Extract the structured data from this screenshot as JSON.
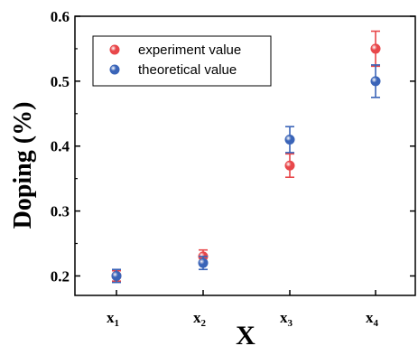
{
  "chart_data": {
    "type": "scatter",
    "xlabel": "X",
    "ylabel": "Doping (%)",
    "categories": [
      {
        "base": "x",
        "sub": "1"
      },
      {
        "base": "x",
        "sub": "2"
      },
      {
        "base": "x",
        "sub": "3"
      },
      {
        "base": "x",
        "sub": "4"
      }
    ],
    "ylim": [
      0.17,
      0.6
    ],
    "yticks": [
      0.2,
      0.3,
      0.4,
      0.5,
      0.6
    ],
    "ytick_labels": [
      "0.2",
      "0.3",
      "0.4",
      "0.5",
      "0.6"
    ],
    "grid": false,
    "legend_position": "top-left",
    "series": [
      {
        "name": "experiment value",
        "color": "#e8474a",
        "values": [
          0.2,
          0.23,
          0.37,
          0.55
        ],
        "errors": [
          0.008,
          0.01,
          0.018,
          0.027
        ]
      },
      {
        "name": "theoretical value",
        "color": "#3a64b8",
        "values": [
          0.2,
          0.22,
          0.41,
          0.5
        ],
        "errors": [
          0.01,
          0.01,
          0.02,
          0.025
        ]
      }
    ]
  }
}
